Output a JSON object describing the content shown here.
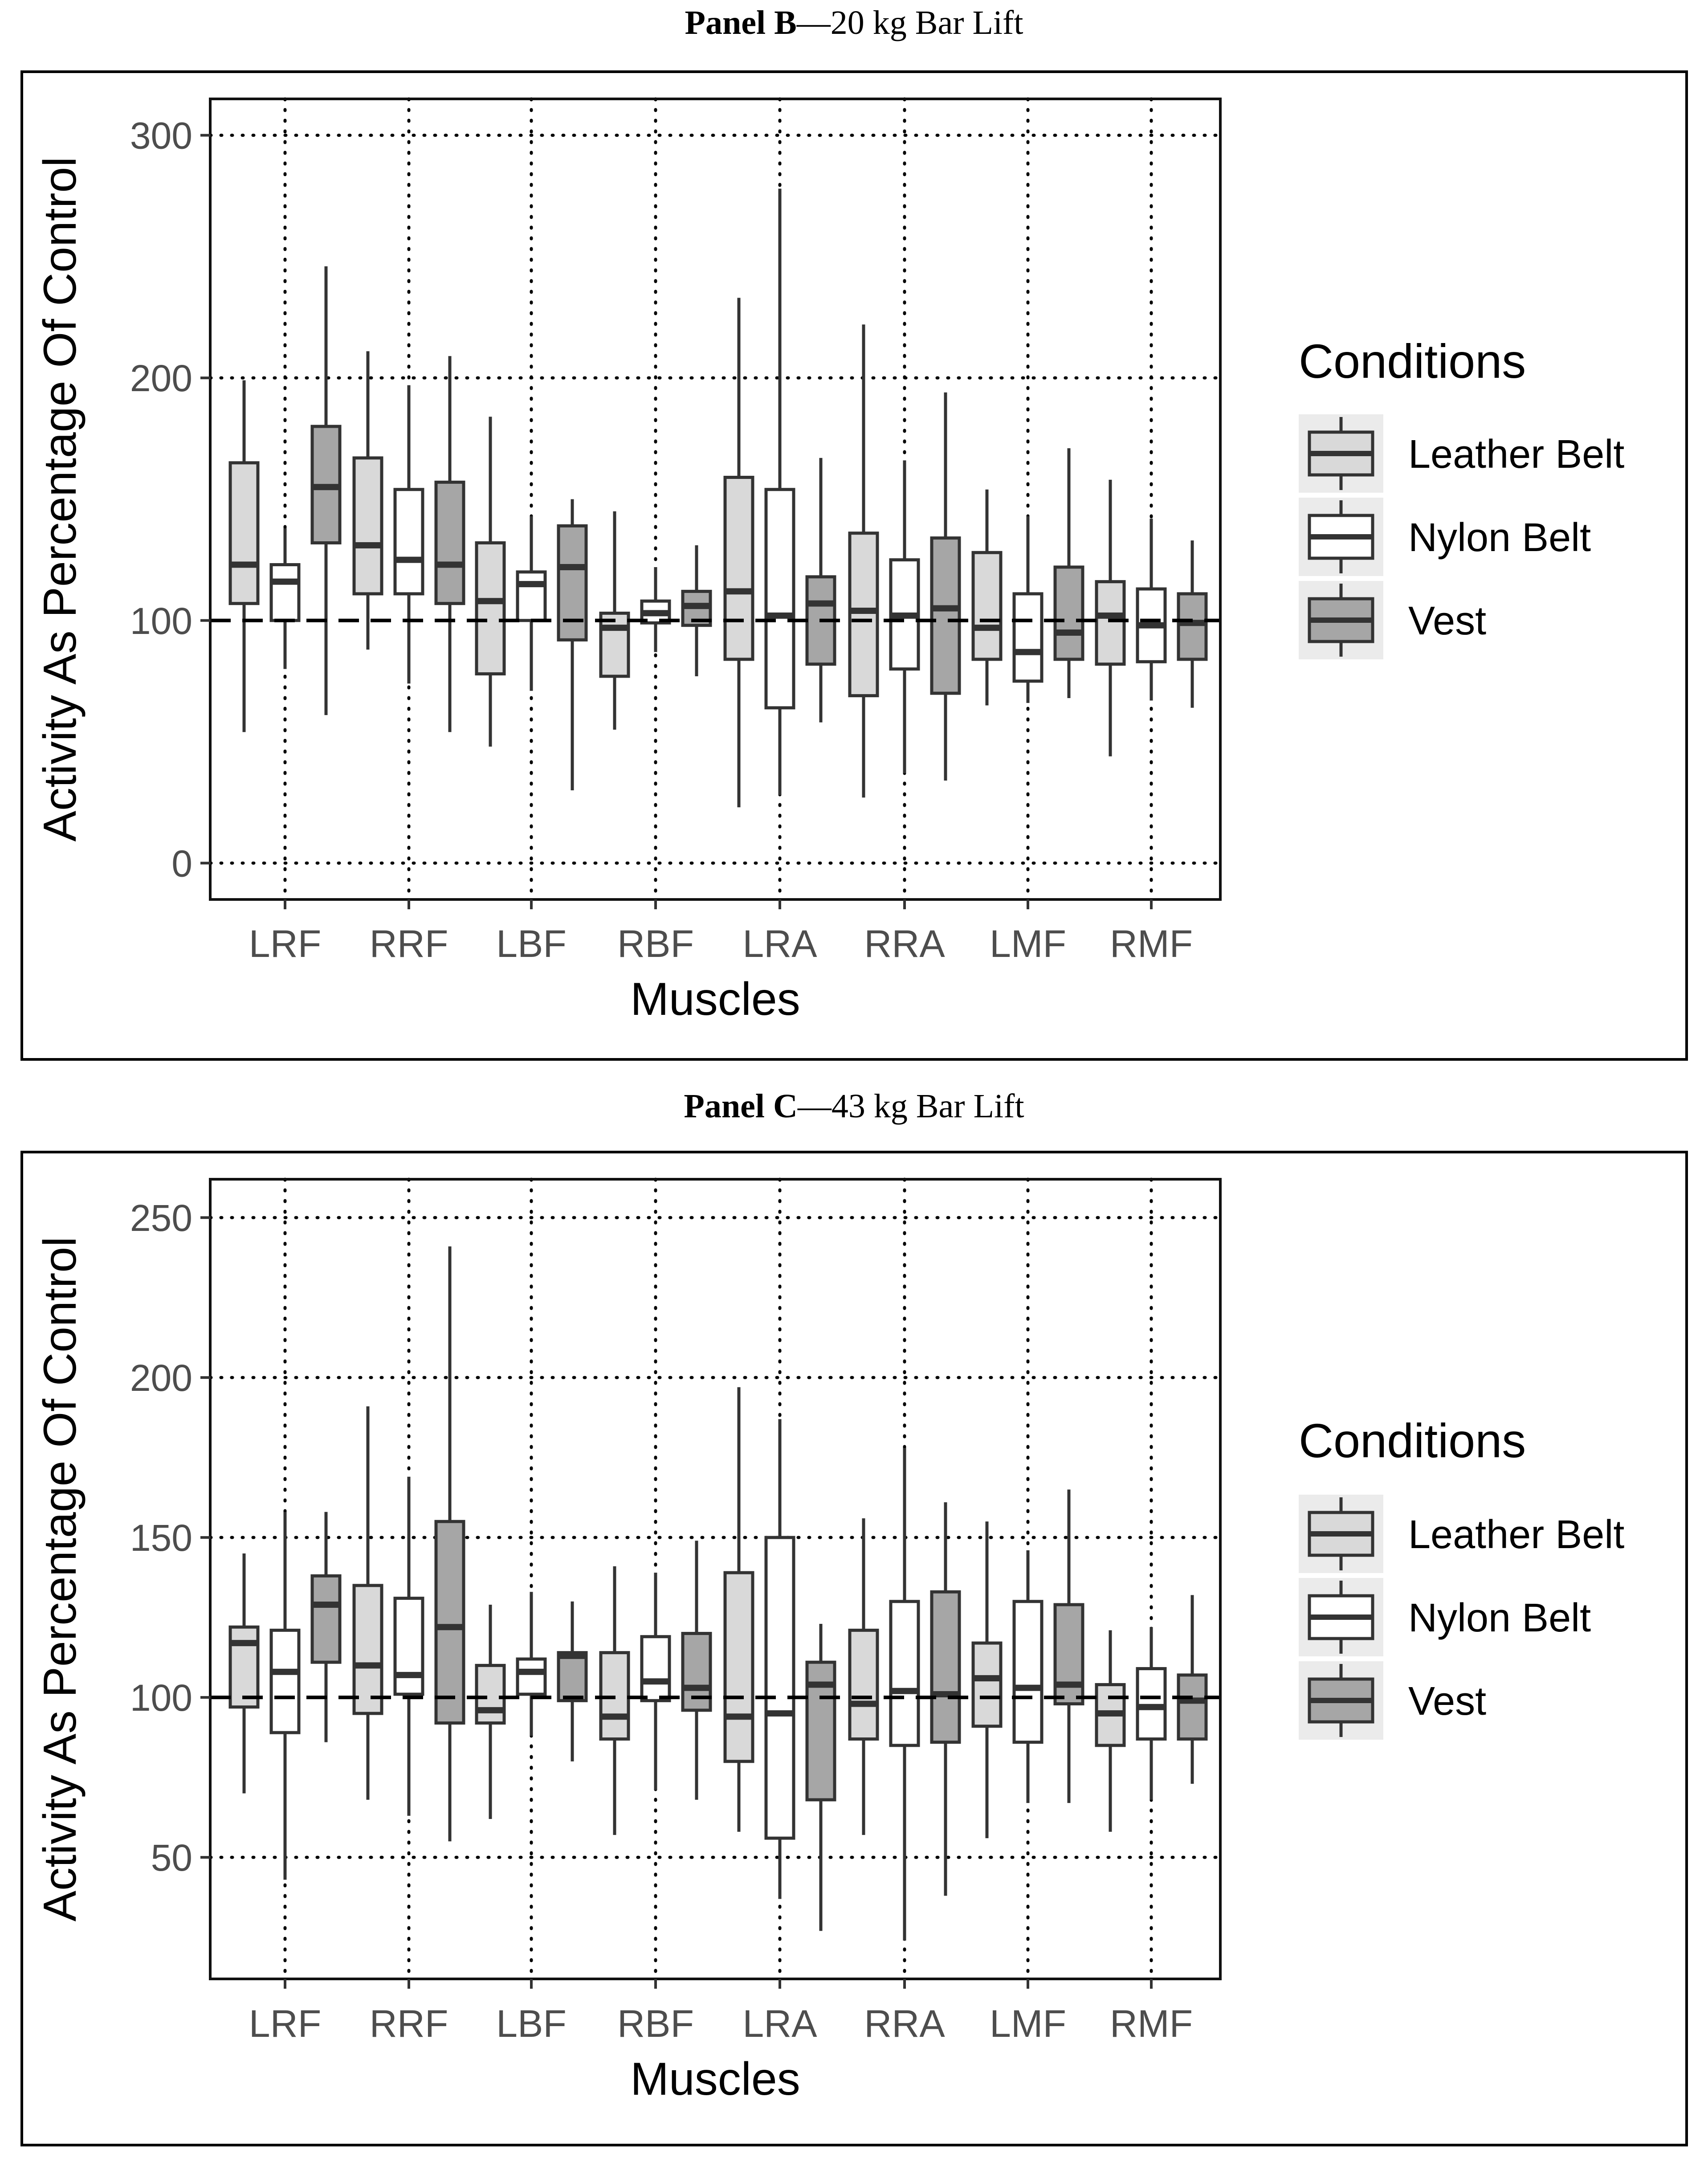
{
  "panels": [
    {
      "title_bold": "Panel B",
      "title_rest": "—20 kg Bar Lift",
      "chart_data": {
        "type": "boxplot",
        "title": "Panel B—20 kg Bar Lift",
        "xlabel": "Muscles",
        "ylabel": "Activity As Percentage Of Control",
        "ylim": [
          -15,
          315
        ],
        "yticks": [
          0,
          100,
          200,
          300
        ],
        "reference_line": 100,
        "grid": "dotted",
        "categories": [
          "LRF",
          "RRF",
          "LBF",
          "RBF",
          "LRA",
          "RRA",
          "LMF",
          "RMF"
        ],
        "legend_title": "Conditions",
        "legend_position": "right",
        "series": [
          {
            "name": "Leather Belt",
            "color": "#d9d9d9",
            "boxes": [
              {
                "min": 54,
                "q1": 107,
                "median": 123,
                "q3": 165,
                "max": 199
              },
              {
                "min": 88,
                "q1": 111,
                "median": 131,
                "q3": 167,
                "max": 211
              },
              {
                "min": 48,
                "q1": 78,
                "median": 108,
                "q3": 132,
                "max": 184
              },
              {
                "min": 55,
                "q1": 77,
                "median": 97,
                "q3": 103,
                "max": 145
              },
              {
                "min": 23,
                "q1": 84,
                "median": 112,
                "q3": 159,
                "max": 233
              },
              {
                "min": 27,
                "q1": 69,
                "median": 104,
                "q3": 136,
                "max": 222
              },
              {
                "min": 65,
                "q1": 84,
                "median": 97,
                "q3": 128,
                "max": 154
              },
              {
                "min": 44,
                "q1": 82,
                "median": 102,
                "q3": 116,
                "max": 158
              }
            ]
          },
          {
            "name": "Nylon Belt",
            "color": "#ffffff",
            "boxes": [
              {
                "min": 80,
                "q1": 100,
                "median": 116,
                "q3": 123,
                "max": 138
              },
              {
                "min": 74,
                "q1": 111,
                "median": 125,
                "q3": 154,
                "max": 197
              },
              {
                "min": 71,
                "q1": 100,
                "median": 115,
                "q3": 120,
                "max": 143
              },
              {
                "min": 87,
                "q1": 99,
                "median": 103,
                "q3": 108,
                "max": 122
              },
              {
                "min": 28,
                "q1": 64,
                "median": 102,
                "q3": 154,
                "max": 278
              },
              {
                "min": 37,
                "q1": 80,
                "median": 102,
                "q3": 125,
                "max": 166
              },
              {
                "min": 66,
                "q1": 75,
                "median": 87,
                "q3": 111,
                "max": 143
              },
              {
                "min": 67,
                "q1": 83,
                "median": 98,
                "q3": 113,
                "max": 142
              }
            ]
          },
          {
            "name": "Vest",
            "color": "#a6a6a6",
            "boxes": [
              {
                "min": 61,
                "q1": 132,
                "median": 155,
                "q3": 180,
                "max": 246
              },
              {
                "min": 54,
                "q1": 107,
                "median": 123,
                "q3": 157,
                "max": 209
              },
              {
                "min": 30,
                "q1": 92,
                "median": 122,
                "q3": 139,
                "max": 150
              },
              {
                "min": 77,
                "q1": 98,
                "median": 106,
                "q3": 112,
                "max": 131
              },
              {
                "min": 58,
                "q1": 82,
                "median": 107,
                "q3": 118,
                "max": 167
              },
              {
                "min": 34,
                "q1": 70,
                "median": 105,
                "q3": 134,
                "max": 194
              },
              {
                "min": 68,
                "q1": 84,
                "median": 95,
                "q3": 122,
                "max": 171
              },
              {
                "min": 64,
                "q1": 84,
                "median": 99,
                "q3": 111,
                "max": 133
              }
            ]
          }
        ]
      }
    },
    {
      "title_bold": "Panel C",
      "title_rest": "—43 kg Bar Lift",
      "chart_data": {
        "type": "boxplot",
        "title": "Panel C—43 kg Bar Lift",
        "xlabel": "Muscles",
        "ylabel": "Activity As Percentage Of Control",
        "ylim": [
          12,
          262
        ],
        "yticks": [
          50,
          100,
          150,
          200,
          250
        ],
        "reference_line": 100,
        "grid": "dotted",
        "categories": [
          "LRF",
          "RRF",
          "LBF",
          "RBF",
          "LRA",
          "RRA",
          "LMF",
          "RMF"
        ],
        "legend_title": "Conditions",
        "legend_position": "right",
        "series": [
          {
            "name": "Leather Belt",
            "color": "#d9d9d9",
            "boxes": [
              {
                "min": 70,
                "q1": 97,
                "median": 117,
                "q3": 122,
                "max": 145
              },
              {
                "min": 68,
                "q1": 95,
                "median": 110,
                "q3": 135,
                "max": 191
              },
              {
                "min": 62,
                "q1": 92,
                "median": 96,
                "q3": 110,
                "max": 129
              },
              {
                "min": 57,
                "q1": 87,
                "median": 94,
                "q3": 114,
                "max": 141
              },
              {
                "min": 58,
                "q1": 80,
                "median": 94,
                "q3": 139,
                "max": 197
              },
              {
                "min": 57,
                "q1": 87,
                "median": 98,
                "q3": 121,
                "max": 156
              },
              {
                "min": 56,
                "q1": 91,
                "median": 106,
                "q3": 117,
                "max": 155
              },
              {
                "min": 58,
                "q1": 85,
                "median": 95,
                "q3": 104,
                "max": 121
              }
            ]
          },
          {
            "name": "Nylon Belt",
            "color": "#ffffff",
            "boxes": [
              {
                "min": 43,
                "q1": 89,
                "median": 108,
                "q3": 121,
                "max": 158
              },
              {
                "min": 63,
                "q1": 101,
                "median": 107,
                "q3": 131,
                "max": 169
              },
              {
                "min": 88,
                "q1": 101,
                "median": 108,
                "q3": 112,
                "max": 133
              },
              {
                "min": 71,
                "q1": 99,
                "median": 105,
                "q3": 119,
                "max": 139
              },
              {
                "min": 37,
                "q1": 56,
                "median": 95,
                "q3": 150,
                "max": 187
              },
              {
                "min": 24,
                "q1": 85,
                "median": 102,
                "q3": 130,
                "max": 178
              },
              {
                "min": 67,
                "q1": 86,
                "median": 103,
                "q3": 130,
                "max": 146
              },
              {
                "min": 68,
                "q1": 87,
                "median": 97,
                "q3": 109,
                "max": 122
              }
            ]
          },
          {
            "name": "Vest",
            "color": "#a6a6a6",
            "boxes": [
              {
                "min": 86,
                "q1": 111,
                "median": 129,
                "q3": 138,
                "max": 158
              },
              {
                "min": 55,
                "q1": 92,
                "median": 122,
                "q3": 155,
                "max": 241
              },
              {
                "min": 80,
                "q1": 99,
                "median": 113,
                "q3": 114,
                "max": 130
              },
              {
                "min": 68,
                "q1": 96,
                "median": 103,
                "q3": 120,
                "max": 149
              },
              {
                "min": 27,
                "q1": 68,
                "median": 104,
                "q3": 111,
                "max": 123
              },
              {
                "min": 38,
                "q1": 86,
                "median": 101,
                "q3": 133,
                "max": 161
              },
              {
                "min": 67,
                "q1": 98,
                "median": 104,
                "q3": 129,
                "max": 165
              },
              {
                "min": 73,
                "q1": 87,
                "median": 99,
                "q3": 107,
                "max": 132
              }
            ]
          }
        ]
      }
    }
  ]
}
